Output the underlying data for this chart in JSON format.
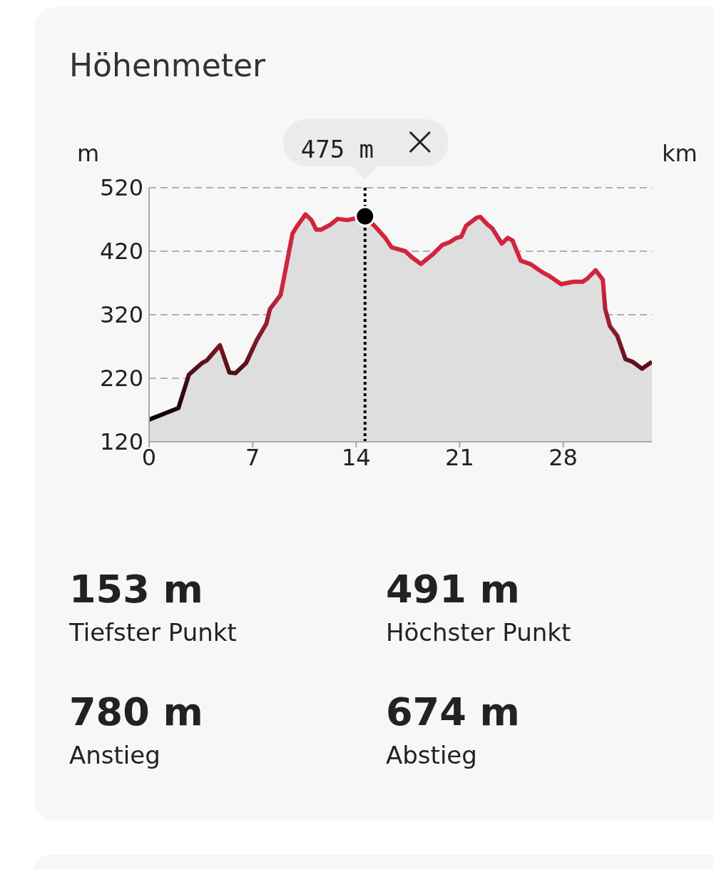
{
  "chart_data": {
    "type": "area",
    "title": "Höhenmeter",
    "ylabel": "m",
    "xlabel": "km",
    "series": [
      {
        "color": "#d0253e",
        "x": [
          0,
          1.98,
          2.7,
          3.58,
          3.9,
          4.79,
          5.43,
          5.84,
          6.56,
          7.28,
          7.93,
          8.17,
          8.89,
          9.21,
          9.7,
          10.02,
          10.58,
          10.98,
          11.3,
          11.63,
          12.27,
          12.75,
          13.4,
          14.6,
          15.4,
          15.97,
          16.4,
          17.33,
          17.74,
          18.38,
          19.18,
          19.83,
          20.31,
          20.79,
          21.11,
          21.43,
          22.16,
          22.4,
          22.88,
          23.2,
          23.85,
          24.25,
          24.57,
          25.13,
          25.77,
          26.58,
          27.06,
          27.87,
          28.67,
          29.32,
          29.63,
          30.2,
          30.68,
          30.84,
          31.16,
          31.65,
          32.21,
          32.69,
          33.33,
          34
        ],
        "values": [
          155,
          173,
          226,
          244,
          248,
          272,
          229,
          228,
          244,
          280,
          306,
          329,
          351,
          389,
          448,
          460,
          478,
          469,
          454,
          454,
          462,
          471,
          469,
          475,
          456,
          441,
          426,
          420,
          411,
          400,
          415,
          430,
          434,
          441,
          443,
          460,
          473,
          474,
          462,
          456,
          432,
          441,
          437,
          405,
          400,
          387,
          381,
          368,
          372,
          372,
          377,
          390,
          375,
          329,
          302,
          287,
          250,
          246,
          235,
          246
        ]
      }
    ],
    "xlim": [
      0,
      34
    ],
    "xticks": [
      0,
      7,
      14,
      21,
      28
    ],
    "ylim": [
      120,
      520
    ],
    "yticks": [
      120,
      220,
      320,
      420,
      520
    ],
    "grid": "y",
    "marker": "none",
    "line_style": "solid",
    "ref_lines": [
      {
        "axis": "x",
        "value": 14.6,
        "line_style": "dotted",
        "color": "#000000"
      }
    ],
    "annotations": [
      {
        "text": "475 m",
        "x": 14.6,
        "y": 475
      },
      "153 m",
      "Tiefster Punkt",
      "491 m",
      "Höchster Punkt",
      "780 m",
      "Anstieg",
      "674 m",
      "Abstieg"
    ]
  }
}
